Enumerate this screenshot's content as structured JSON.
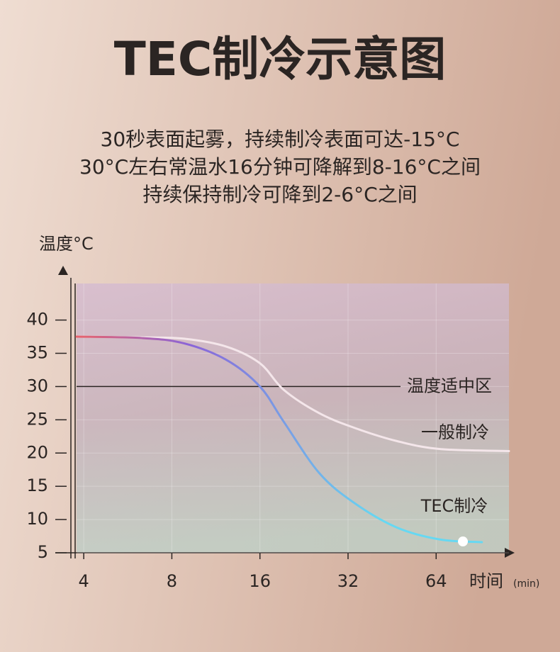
{
  "chart_data": {
    "type": "line",
    "title": "TEC制冷示意图",
    "subtitle": [
      "30秒表面起雾，持续制冷表面可达-15°C",
      "30°C左右常温水16分钟可降解到8-16°C之间",
      "持续保持制冷可降到2-6°C之间"
    ],
    "y_label": "温度°C",
    "x_label": "时间",
    "x_unit": "(min)",
    "x_scale": "log2",
    "xlim": [
      3.78,
      113.5
    ],
    "xticks": [
      4,
      8,
      16,
      32,
      64
    ],
    "ylim": [
      5,
      45.5
    ],
    "yticks": [
      5,
      10,
      15,
      20,
      25,
      30,
      35,
      40
    ],
    "grid": true,
    "reference_line": {
      "y": 30,
      "label": "温度适中区"
    },
    "series": [
      {
        "name": "一般制冷",
        "color": "#f4e6ea",
        "x": [
          3.78,
          6.3,
          8.8,
          12.3,
          16,
          19.3,
          25.5,
          33.6,
          47,
          66,
          113.5
        ],
        "values": [
          37.5,
          37.4,
          37.2,
          36,
          33.5,
          29.5,
          26,
          23.8,
          21.8,
          20.6,
          20.3
        ]
      },
      {
        "name": "TEC制冷",
        "color": "#e8646c",
        "gradient": [
          "#e8646c",
          "#8a64d8",
          "#66d8f2"
        ],
        "x": [
          3.78,
          6.3,
          8.8,
          12.3,
          16,
          19.3,
          25.5,
          33.6,
          47,
          66,
          91.7
        ],
        "values": [
          37.5,
          37.3,
          36.5,
          34,
          30,
          24.7,
          17,
          12.5,
          8.8,
          7,
          6.6
        ],
        "marker": {
          "x": 79,
          "y": 6.7
        }
      }
    ]
  }
}
